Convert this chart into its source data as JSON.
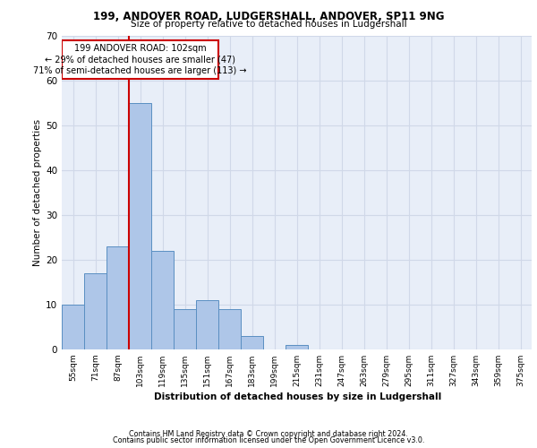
{
  "title1": "199, ANDOVER ROAD, LUDGERSHALL, ANDOVER, SP11 9NG",
  "title2": "Size of property relative to detached houses in Ludgershall",
  "xlabel": "Distribution of detached houses by size in Ludgershall",
  "ylabel": "Number of detached properties",
  "categories": [
    "55sqm",
    "71sqm",
    "87sqm",
    "103sqm",
    "119sqm",
    "135sqm",
    "151sqm",
    "167sqm",
    "183sqm",
    "199sqm",
    "215sqm",
    "231sqm",
    "247sqm",
    "263sqm",
    "279sqm",
    "295sqm",
    "311sqm",
    "327sqm",
    "343sqm",
    "359sqm",
    "375sqm"
  ],
  "bar_values": [
    10,
    17,
    23,
    55,
    22,
    9,
    11,
    9,
    3,
    0,
    1,
    0,
    0,
    0,
    0,
    0,
    0,
    0,
    0,
    0,
    0
  ],
  "bar_color": "#aec6e8",
  "bar_edge_color": "#5a8fc2",
  "vline_index": 3,
  "property_line_label": "199 ANDOVER ROAD: 102sqm",
  "annotation_line1": "← 29% of detached houses are smaller (47)",
  "annotation_line2": "71% of semi-detached houses are larger (113) →",
  "annotation_box_color": "#ffffff",
  "annotation_box_edge": "#cc0000",
  "vline_color": "#cc0000",
  "ylim": [
    0,
    70
  ],
  "yticks": [
    0,
    10,
    20,
    30,
    40,
    50,
    60,
    70
  ],
  "grid_color": "#d0d8e8",
  "bg_color": "#e8eef8",
  "footer1": "Contains HM Land Registry data © Crown copyright and database right 2024.",
  "footer2": "Contains public sector information licensed under the Open Government Licence v3.0."
}
